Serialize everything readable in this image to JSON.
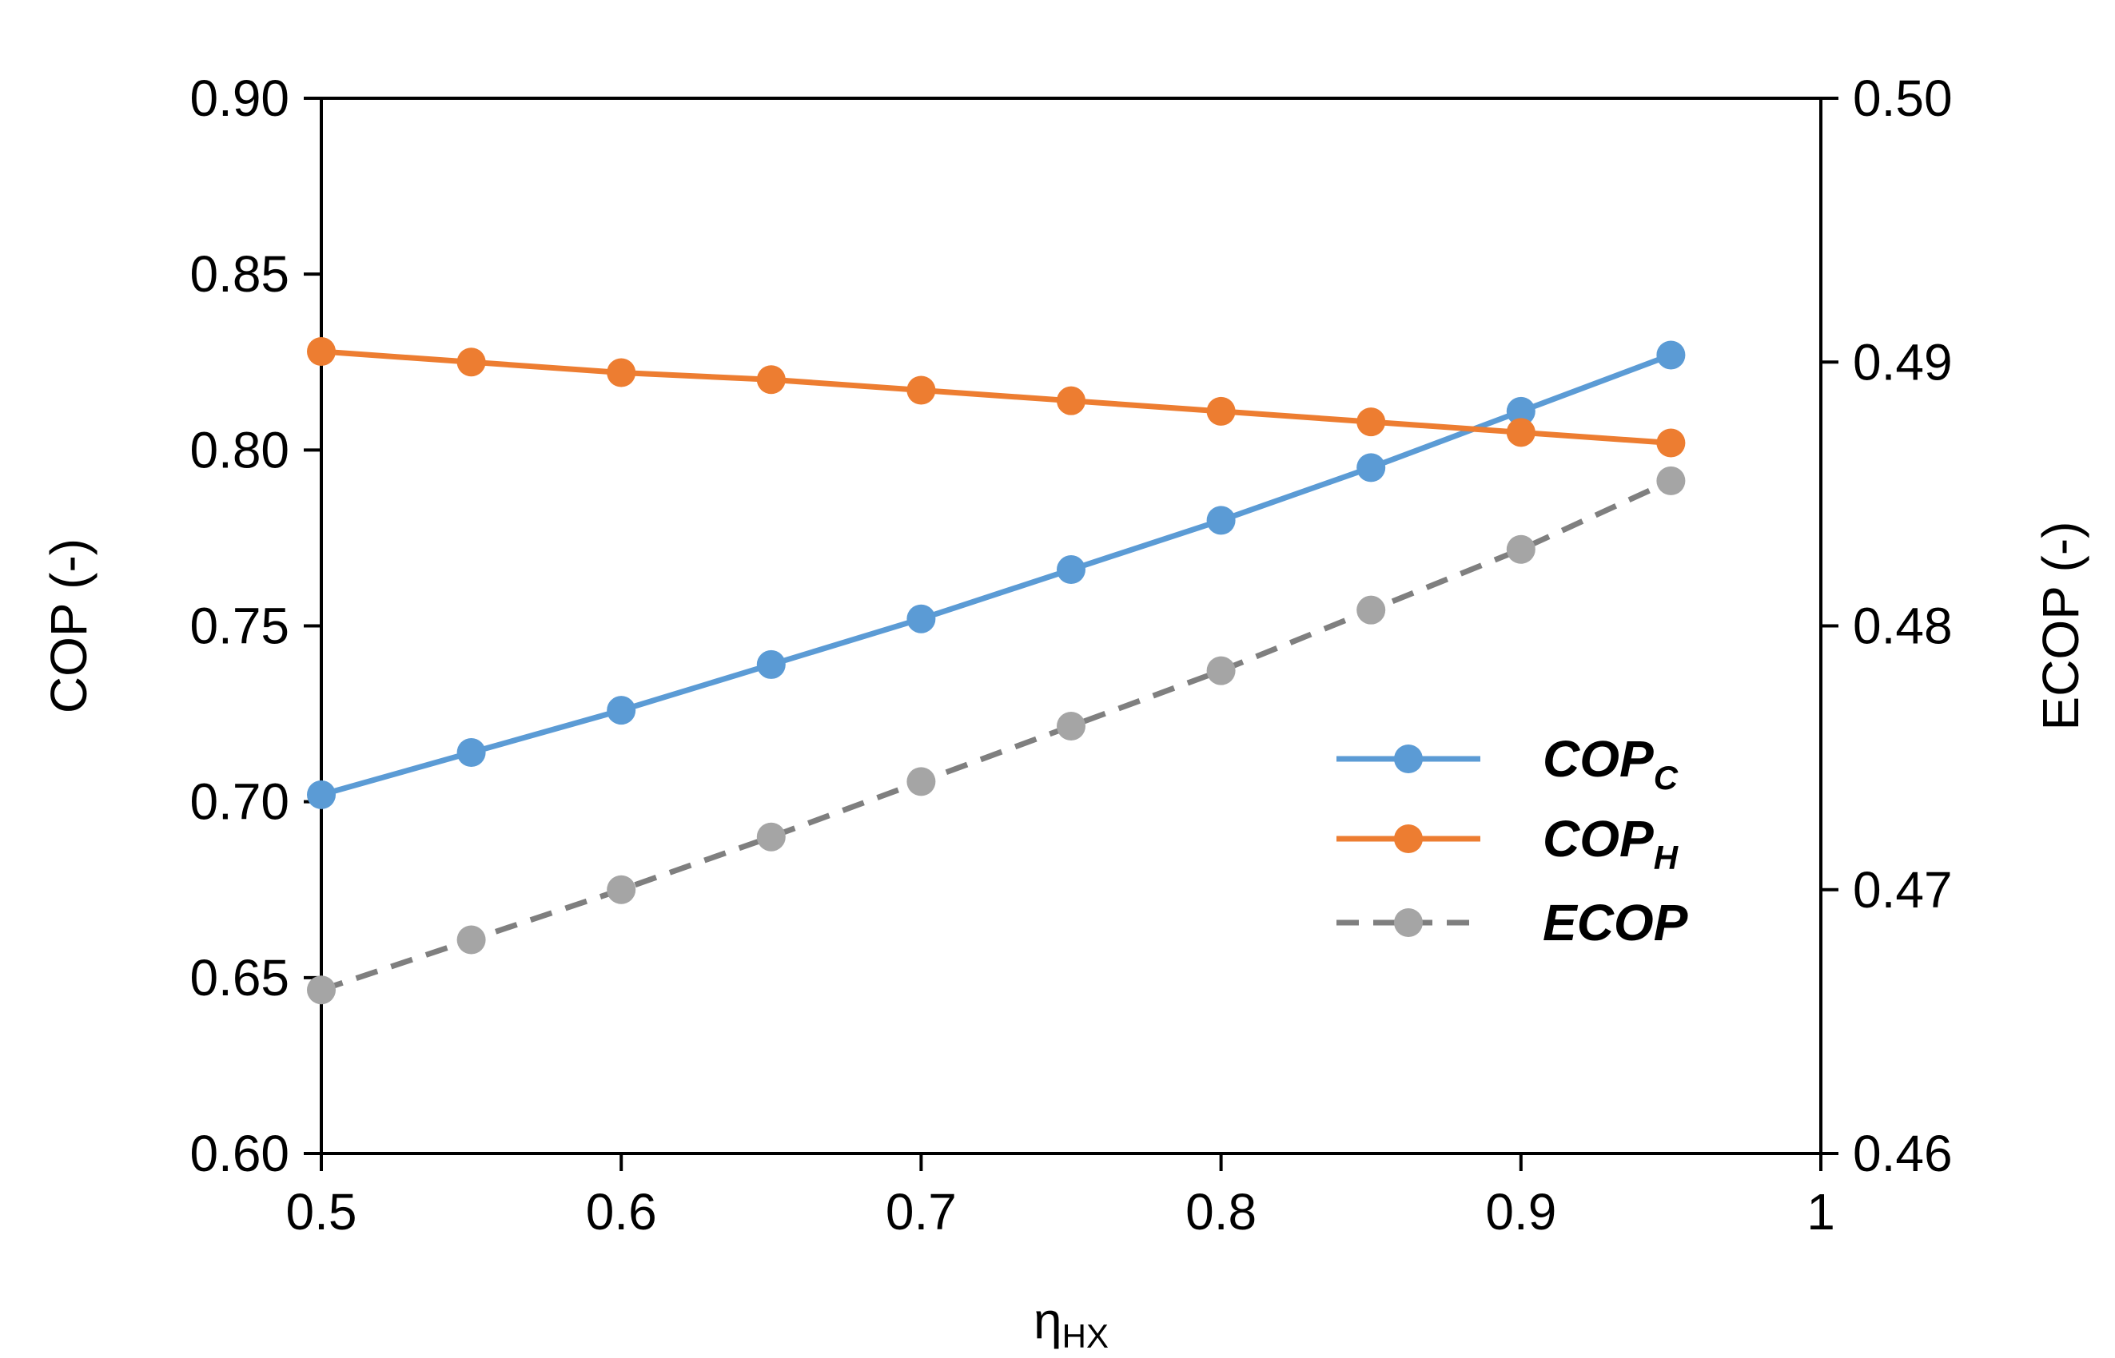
{
  "chart_data": {
    "type": "line",
    "title": "",
    "xlabel": {
      "main": "η",
      "sub": "HX"
    },
    "ylabel": "COP (-)",
    "y2label": "ECOP (-)",
    "xlim": [
      0.5,
      1.0
    ],
    "ylim": [
      0.6,
      0.9
    ],
    "y2lim": [
      0.46,
      0.5
    ],
    "xticks": [
      "0.5",
      "0.6",
      "0.7",
      "0.8",
      "0.9",
      "1"
    ],
    "xtick_values": [
      0.5,
      0.6,
      0.7,
      0.8,
      0.9,
      1.0
    ],
    "yticks": [
      "0.60",
      "0.65",
      "0.70",
      "0.75",
      "0.80",
      "0.85",
      "0.90"
    ],
    "ytick_values": [
      0.6,
      0.65,
      0.7,
      0.75,
      0.8,
      0.85,
      0.9
    ],
    "y2ticks": [
      "0.46",
      "0.47",
      "0.48",
      "0.49",
      "0.50"
    ],
    "y2tick_values": [
      0.46,
      0.47,
      0.48,
      0.49,
      0.5
    ],
    "grid": false,
    "legend_position": "right-center",
    "x": [
      0.5,
      0.55,
      0.6,
      0.65,
      0.7,
      0.75,
      0.8,
      0.85,
      0.9,
      0.95
    ],
    "series": [
      {
        "name": "COP",
        "sub": "C",
        "axis": "left",
        "color": "#5b9bd5",
        "marker_color": "#5b9bd5",
        "dashed": false,
        "values": [
          0.702,
          0.714,
          0.726,
          0.739,
          0.752,
          0.766,
          0.78,
          0.795,
          0.811,
          0.827
        ]
      },
      {
        "name": "COP",
        "sub": "H",
        "axis": "left",
        "color": "#ed7d31",
        "marker_color": "#ed7d31",
        "dashed": false,
        "values": [
          0.828,
          0.825,
          0.822,
          0.82,
          0.817,
          0.814,
          0.811,
          0.808,
          0.805,
          0.802
        ]
      },
      {
        "name": "ECOP",
        "sub": "",
        "axis": "right",
        "color": "#7f7f7f",
        "marker_color": "#a5a5a5",
        "dashed": true,
        "values": [
          0.4662,
          0.4681,
          0.47,
          0.472,
          0.4741,
          0.4762,
          0.4783,
          0.4806,
          0.4829,
          0.4855
        ]
      }
    ]
  }
}
